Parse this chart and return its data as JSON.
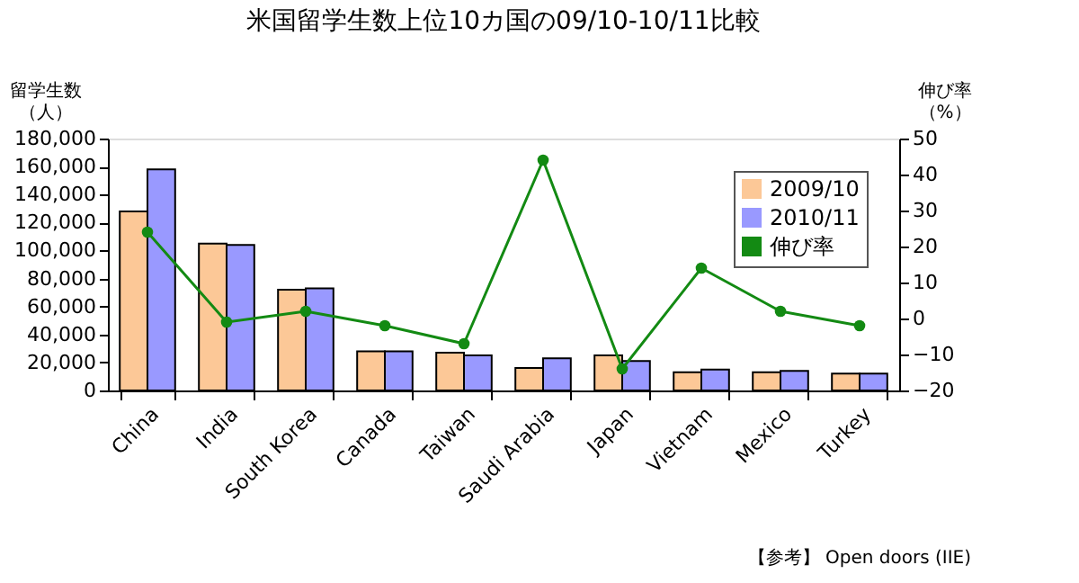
{
  "chart_data": {
    "type": "bar",
    "title": "米国留学生数上位10カ国の09/10-10/11比較",
    "ylabel": "留学生数（人）",
    "y2label": "伸び率（%）",
    "categories": [
      "China",
      "India",
      "South Korea",
      "Canada",
      "Taiwan",
      "Saudi Arabia",
      "Japan",
      "Vietnam",
      "Mexico",
      "Turkey"
    ],
    "series": [
      {
        "name": "2009/10",
        "color": "#fcc897",
        "values": [
          128000,
          105000,
          72000,
          28000,
          27000,
          16000,
          25000,
          13000,
          13000,
          12000
        ]
      },
      {
        "name": "2010/11",
        "color": "#9999ff",
        "values": [
          158000,
          104000,
          73000,
          28000,
          25000,
          23000,
          21000,
          15000,
          14000,
          12000
        ]
      },
      {
        "name": "伸び率",
        "color": "#138a13",
        "type": "line",
        "axis": "y2",
        "marker": "circle",
        "values": [
          24,
          -1,
          2,
          -2,
          -7,
          44,
          -14,
          14,
          2,
          -2
        ]
      }
    ],
    "ylim": [
      0,
      180000
    ],
    "yticks": [
      0,
      {
        "value": 20000,
        "label": "20,000"
      },
      {
        "value": 40000,
        "label": "40,000"
      },
      {
        "value": 60000,
        "label": "60,000"
      },
      {
        "value": 80000,
        "label": "80,000"
      },
      {
        "value": 100000,
        "label": "100,000"
      },
      {
        "value": 120000,
        "label": "120,000"
      },
      {
        "value": 140000,
        "label": "140,000"
      },
      {
        "value": 160000,
        "label": "160,000"
      },
      {
        "value": 180000,
        "label": "180,000"
      }
    ],
    "y2lim": [
      -20,
      50
    ],
    "y2ticks": [
      -20,
      -10,
      0,
      10,
      20,
      30,
      40,
      50
    ],
    "grid": false,
    "legend": "top right",
    "annotations": [
      "【参考】 Open doors (IIE)"
    ]
  }
}
